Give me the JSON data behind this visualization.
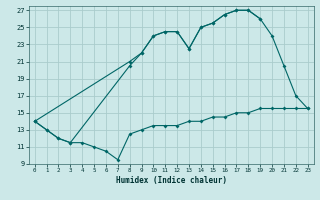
{
  "xlabel": "Humidex (Indice chaleur)",
  "background_color": "#cce8e8",
  "grid_color": "#aacccc",
  "line_color": "#006666",
  "xlim": [
    -0.5,
    23.5
  ],
  "ylim": [
    9,
    27.5
  ],
  "yticks": [
    9,
    11,
    13,
    15,
    17,
    19,
    21,
    23,
    25,
    27
  ],
  "xticks": [
    0,
    1,
    2,
    3,
    4,
    5,
    6,
    7,
    8,
    9,
    10,
    11,
    12,
    13,
    14,
    15,
    16,
    17,
    18,
    19,
    20,
    21,
    22,
    23
  ],
  "line_a_x": [
    0,
    8,
    9,
    10,
    11,
    12,
    13,
    14,
    15,
    16,
    17,
    18,
    19,
    20,
    21,
    22,
    23
  ],
  "line_a_y": [
    14.0,
    21.0,
    22.0,
    24.0,
    24.5,
    24.5,
    22.5,
    25.0,
    25.5,
    26.5,
    27.0,
    27.0,
    26.0,
    24.0,
    20.5,
    17.0,
    15.5
  ],
  "line_b_x": [
    0,
    1,
    2,
    3,
    8,
    9,
    10,
    11,
    12,
    13,
    14,
    15,
    16,
    17,
    18,
    19
  ],
  "line_b_y": [
    14.0,
    13.0,
    12.0,
    11.5,
    20.5,
    22.0,
    24.0,
    24.5,
    24.5,
    22.5,
    25.0,
    25.5,
    26.5,
    27.0,
    27.0,
    26.0
  ],
  "line_c_x": [
    0,
    1,
    2,
    3,
    4,
    5,
    6,
    7,
    8,
    9,
    10,
    11,
    12,
    13,
    14,
    15,
    16,
    17,
    18,
    19,
    20,
    21,
    22,
    23
  ],
  "line_c_y": [
    14.0,
    13.0,
    12.0,
    11.5,
    11.5,
    11.0,
    10.5,
    9.5,
    12.5,
    13.0,
    13.5,
    13.5,
    13.5,
    14.0,
    14.0,
    14.5,
    14.5,
    15.0,
    15.0,
    15.5,
    15.5,
    15.5,
    15.5,
    15.5
  ]
}
